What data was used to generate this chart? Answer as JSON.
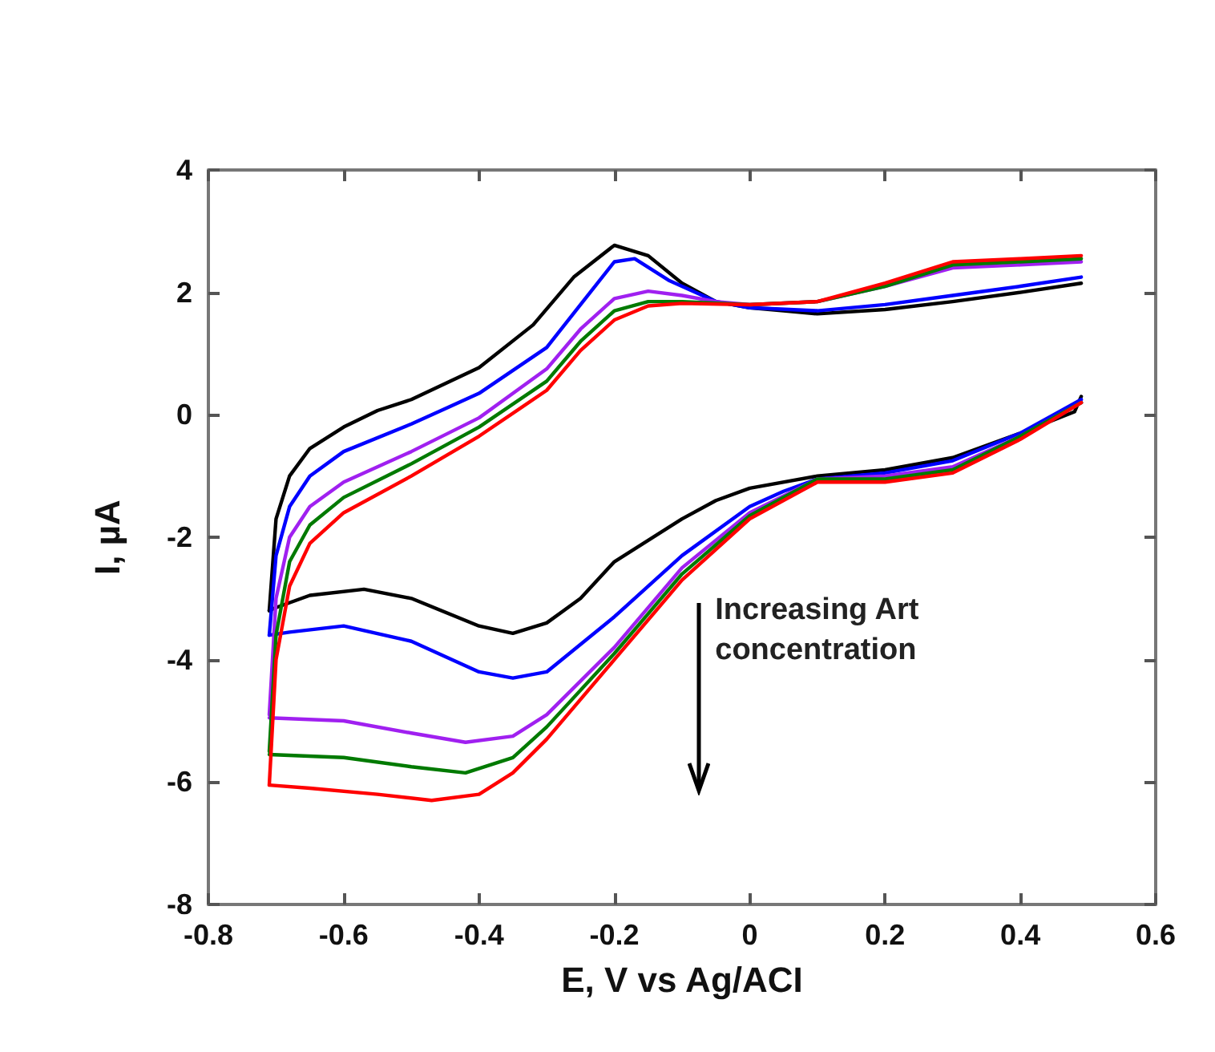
{
  "chart_data": {
    "type": "line",
    "xlabel": "E, V vs Ag/ACI",
    "ylabel": "I, µA",
    "annotations": [
      "Increasing Art concentration"
    ],
    "xlim": [
      -0.8,
      0.6
    ],
    "xticks": [
      -0.8,
      -0.6,
      -0.4,
      -0.2,
      0,
      0.2,
      0.4,
      0.6
    ],
    "ylim": [
      -8,
      4
    ],
    "yticks": [
      -8,
      -6,
      -4,
      -2,
      0,
      2,
      4
    ],
    "grid": false,
    "marker": "none",
    "line_style": "solid",
    "series": [
      {
        "color": "#000000",
        "x": [
          -0.71,
          -0.7,
          -0.68,
          -0.65,
          -0.6,
          -0.55,
          -0.5,
          -0.4,
          -0.32,
          -0.26,
          -0.2,
          -0.15,
          -0.1,
          -0.05,
          0,
          0.05,
          0.1,
          0.2,
          0.3,
          0.4,
          0.49
        ],
        "values": [
          -3.2,
          -1.7,
          -1.0,
          -0.55,
          -0.2,
          0.07,
          0.25,
          0.77,
          1.47,
          2.25,
          2.77,
          2.6,
          2.15,
          1.85,
          1.75,
          1.7,
          1.65,
          1.72,
          1.85,
          2.0,
          2.15
        ]
      },
      {
        "color": "#000000",
        "x": [
          -0.71,
          -0.7,
          -0.65,
          -0.57,
          -0.5,
          -0.4,
          -0.35,
          -0.3,
          -0.25,
          -0.2,
          -0.1,
          -0.05,
          0,
          0.1,
          0.2,
          0.3,
          0.4,
          0.48,
          0.49
        ],
        "values": [
          -3.2,
          -3.15,
          -2.95,
          -2.85,
          -3.0,
          -3.45,
          -3.57,
          -3.4,
          -3.0,
          -2.4,
          -1.7,
          -1.4,
          -1.2,
          -1.0,
          -0.9,
          -0.7,
          -0.3,
          0.05,
          0.3
        ]
      },
      {
        "color": "#0000ff",
        "x": [
          -0.71,
          -0.7,
          -0.68,
          -0.65,
          -0.6,
          -0.5,
          -0.4,
          -0.3,
          -0.25,
          -0.2,
          -0.17,
          -0.12,
          -0.05,
          0,
          0.1,
          0.2,
          0.3,
          0.4,
          0.49
        ],
        "values": [
          -3.6,
          -2.3,
          -1.5,
          -1.0,
          -0.6,
          -0.15,
          0.35,
          1.1,
          1.8,
          2.5,
          2.55,
          2.2,
          1.85,
          1.75,
          1.7,
          1.8,
          1.95,
          2.1,
          2.25
        ]
      },
      {
        "color": "#0000ff",
        "x": [
          -0.71,
          -0.68,
          -0.6,
          -0.5,
          -0.4,
          -0.35,
          -0.3,
          -0.2,
          -0.1,
          0,
          0.05,
          0.1,
          0.2,
          0.3,
          0.4,
          0.49
        ],
        "values": [
          -3.6,
          -3.55,
          -3.45,
          -3.7,
          -4.2,
          -4.3,
          -4.2,
          -3.3,
          -2.3,
          -1.5,
          -1.25,
          -1.05,
          -0.95,
          -0.75,
          -0.3,
          0.25
        ]
      },
      {
        "color": "#a020f0",
        "x": [
          -0.71,
          -0.7,
          -0.68,
          -0.65,
          -0.6,
          -0.5,
          -0.4,
          -0.3,
          -0.25,
          -0.2,
          -0.15,
          -0.1,
          -0.05,
          0,
          0.1,
          0.2,
          0.3,
          0.4,
          0.49
        ],
        "values": [
          -4.9,
          -3.0,
          -2.0,
          -1.5,
          -1.1,
          -0.6,
          -0.05,
          0.75,
          1.4,
          1.9,
          2.02,
          1.95,
          1.85,
          1.8,
          1.85,
          2.1,
          2.4,
          2.45,
          2.5
        ]
      },
      {
        "color": "#a020f0",
        "x": [
          -0.71,
          -0.6,
          -0.5,
          -0.42,
          -0.35,
          -0.3,
          -0.2,
          -0.1,
          0,
          0.1,
          0.2,
          0.3,
          0.4,
          0.49
        ],
        "values": [
          -4.95,
          -5.0,
          -5.2,
          -5.35,
          -5.25,
          -4.9,
          -3.8,
          -2.5,
          -1.6,
          -1.05,
          -1.0,
          -0.85,
          -0.35,
          0.2
        ]
      },
      {
        "color": "#007a00",
        "x": [
          -0.71,
          -0.7,
          -0.68,
          -0.65,
          -0.6,
          -0.5,
          -0.4,
          -0.3,
          -0.25,
          -0.2,
          -0.15,
          -0.1,
          0,
          0.1,
          0.2,
          0.3,
          0.4,
          0.49
        ],
        "values": [
          -5.5,
          -3.6,
          -2.4,
          -1.8,
          -1.35,
          -0.8,
          -0.2,
          0.55,
          1.2,
          1.7,
          1.85,
          1.85,
          1.8,
          1.85,
          2.1,
          2.45,
          2.5,
          2.55
        ]
      },
      {
        "color": "#007a00",
        "x": [
          -0.71,
          -0.6,
          -0.5,
          -0.42,
          -0.35,
          -0.3,
          -0.2,
          -0.1,
          0,
          0.1,
          0.2,
          0.3,
          0.4,
          0.49
        ],
        "values": [
          -5.55,
          -5.6,
          -5.75,
          -5.85,
          -5.6,
          -5.1,
          -3.9,
          -2.6,
          -1.65,
          -1.05,
          -1.05,
          -0.9,
          -0.35,
          0.2
        ]
      },
      {
        "color": "#ff0000",
        "x": [
          -0.71,
          -0.7,
          -0.68,
          -0.65,
          -0.6,
          -0.5,
          -0.4,
          -0.3,
          -0.25,
          -0.2,
          -0.15,
          -0.1,
          0,
          0.1,
          0.2,
          0.3,
          0.4,
          0.49
        ],
        "values": [
          -6.05,
          -4.0,
          -2.8,
          -2.1,
          -1.6,
          -1.0,
          -0.35,
          0.4,
          1.05,
          1.55,
          1.78,
          1.82,
          1.8,
          1.85,
          2.15,
          2.5,
          2.55,
          2.6
        ]
      },
      {
        "color": "#ff0000",
        "x": [
          -0.71,
          -0.65,
          -0.55,
          -0.47,
          -0.4,
          -0.35,
          -0.3,
          -0.2,
          -0.1,
          0,
          0.1,
          0.2,
          0.3,
          0.4,
          0.49
        ],
        "values": [
          -6.05,
          -6.1,
          -6.2,
          -6.3,
          -6.2,
          -5.85,
          -5.3,
          -4.0,
          -2.7,
          -1.7,
          -1.1,
          -1.1,
          -0.95,
          -0.4,
          0.2
        ]
      }
    ]
  }
}
